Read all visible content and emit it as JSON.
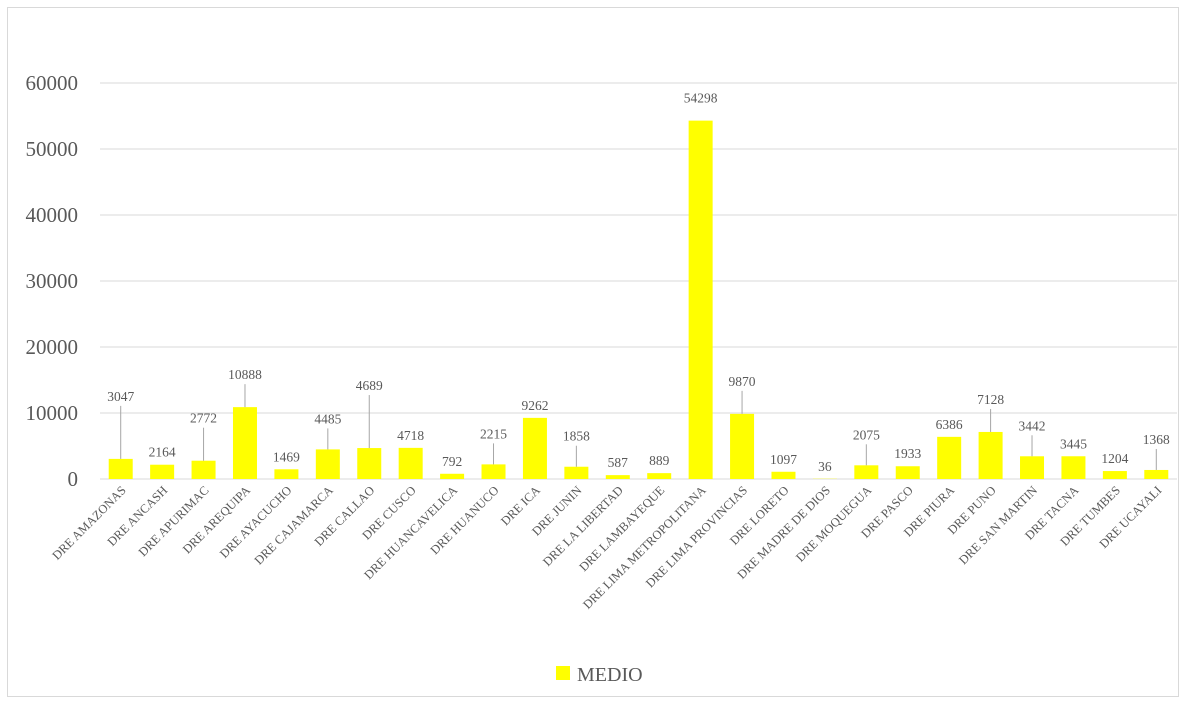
{
  "chart_data": {
    "type": "bar",
    "categories": [
      "DRE AMAZONAS",
      "DRE ANCASH",
      "DRE APURIMAC",
      "DRE AREQUIPA",
      "DRE AYACUCHO",
      "DRE CAJAMARCA",
      "DRE CALLAO",
      "DRE CUSCO",
      "DRE HUANCAVELICA",
      "DRE HUANUCO",
      "DRE ICA",
      "DRE JUNIN",
      "DRE LA LIBERTAD",
      "DRE LAMBAYEQUE",
      "DRE LIMA METROPOLITANA",
      "DRE LIMA PROVINCIAS",
      "DRE LORETO",
      "DRE MADRE DE DIOS",
      "DRE MOQUEGUA",
      "DRE PASCO",
      "DRE PIURA",
      "DRE PUNO",
      "DRE SAN MARTIN",
      "DRE TACNA",
      "DRE TUMBES",
      "DRE UCAYALI"
    ],
    "series": [
      {
        "name": "MEDIO",
        "color": "#ffff00",
        "values": [
          3047,
          2164,
          2772,
          10888,
          1469,
          4485,
          4689,
          4718,
          792,
          2215,
          9262,
          1858,
          587,
          889,
          54298,
          9870,
          1097,
          36,
          2075,
          1933,
          6386,
          7128,
          3442,
          3445,
          1204,
          1368
        ]
      }
    ],
    "ylim": [
      0,
      60000
    ],
    "yticks": [
      0,
      10000,
      20000,
      30000,
      40000,
      50000,
      60000
    ],
    "grid": true,
    "legend_position": "bottom",
    "title": "",
    "xlabel": "",
    "ylabel": ""
  }
}
